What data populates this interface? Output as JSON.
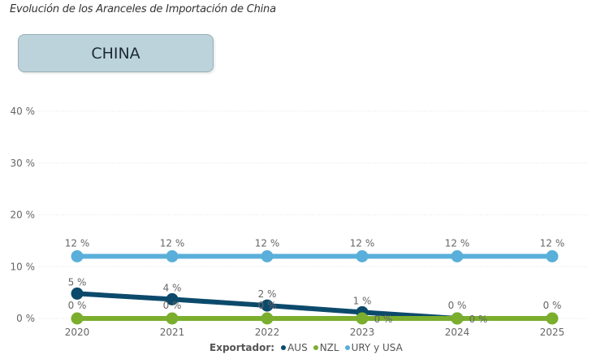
{
  "header": {
    "title": "Evolución de los Aranceles de Importación de China",
    "slicer_label": "CHINA"
  },
  "legend": {
    "title": "Exportador:",
    "items": [
      {
        "label": "AUS",
        "color": "#0c4a6c"
      },
      {
        "label": "NZL",
        "color": "#7aae2c"
      },
      {
        "label": "URY y USA",
        "color": "#5aafda"
      }
    ]
  },
  "chart_data": {
    "type": "line",
    "title": "Evolución de los Aranceles de Importación de China",
    "xlabel": "",
    "ylabel": "",
    "x": [
      "2020",
      "2021",
      "2022",
      "2023",
      "2024",
      "2025"
    ],
    "y_ticks": [
      "0 %",
      "10 %",
      "20 %",
      "30 %",
      "40 %"
    ],
    "ylim": [
      0,
      40
    ],
    "grid": true,
    "legend_position": "bottom",
    "legend_title": "Exportador:",
    "series": [
      {
        "name": "AUS",
        "color": "#0c4a6c",
        "values": [
          4.8,
          3.7,
          2.5,
          1.2,
          0,
          null
        ],
        "labels": [
          "5 %",
          "4 %",
          "2 %",
          "1 %",
          "0 %",
          null
        ]
      },
      {
        "name": "NZL",
        "color": "#7aae2c",
        "values": [
          0,
          0,
          0,
          0,
          0,
          0
        ],
        "labels": [
          "0 %",
          "0 %",
          "0 %",
          "0 %",
          "0 %",
          "0 %"
        ]
      },
      {
        "name": "URY y USA",
        "color": "#5aafda",
        "values": [
          12,
          12,
          12,
          12,
          12,
          12
        ],
        "labels": [
          "12 %",
          "12 %",
          "12 %",
          "12 %",
          "12 %",
          "12 %"
        ]
      }
    ]
  }
}
